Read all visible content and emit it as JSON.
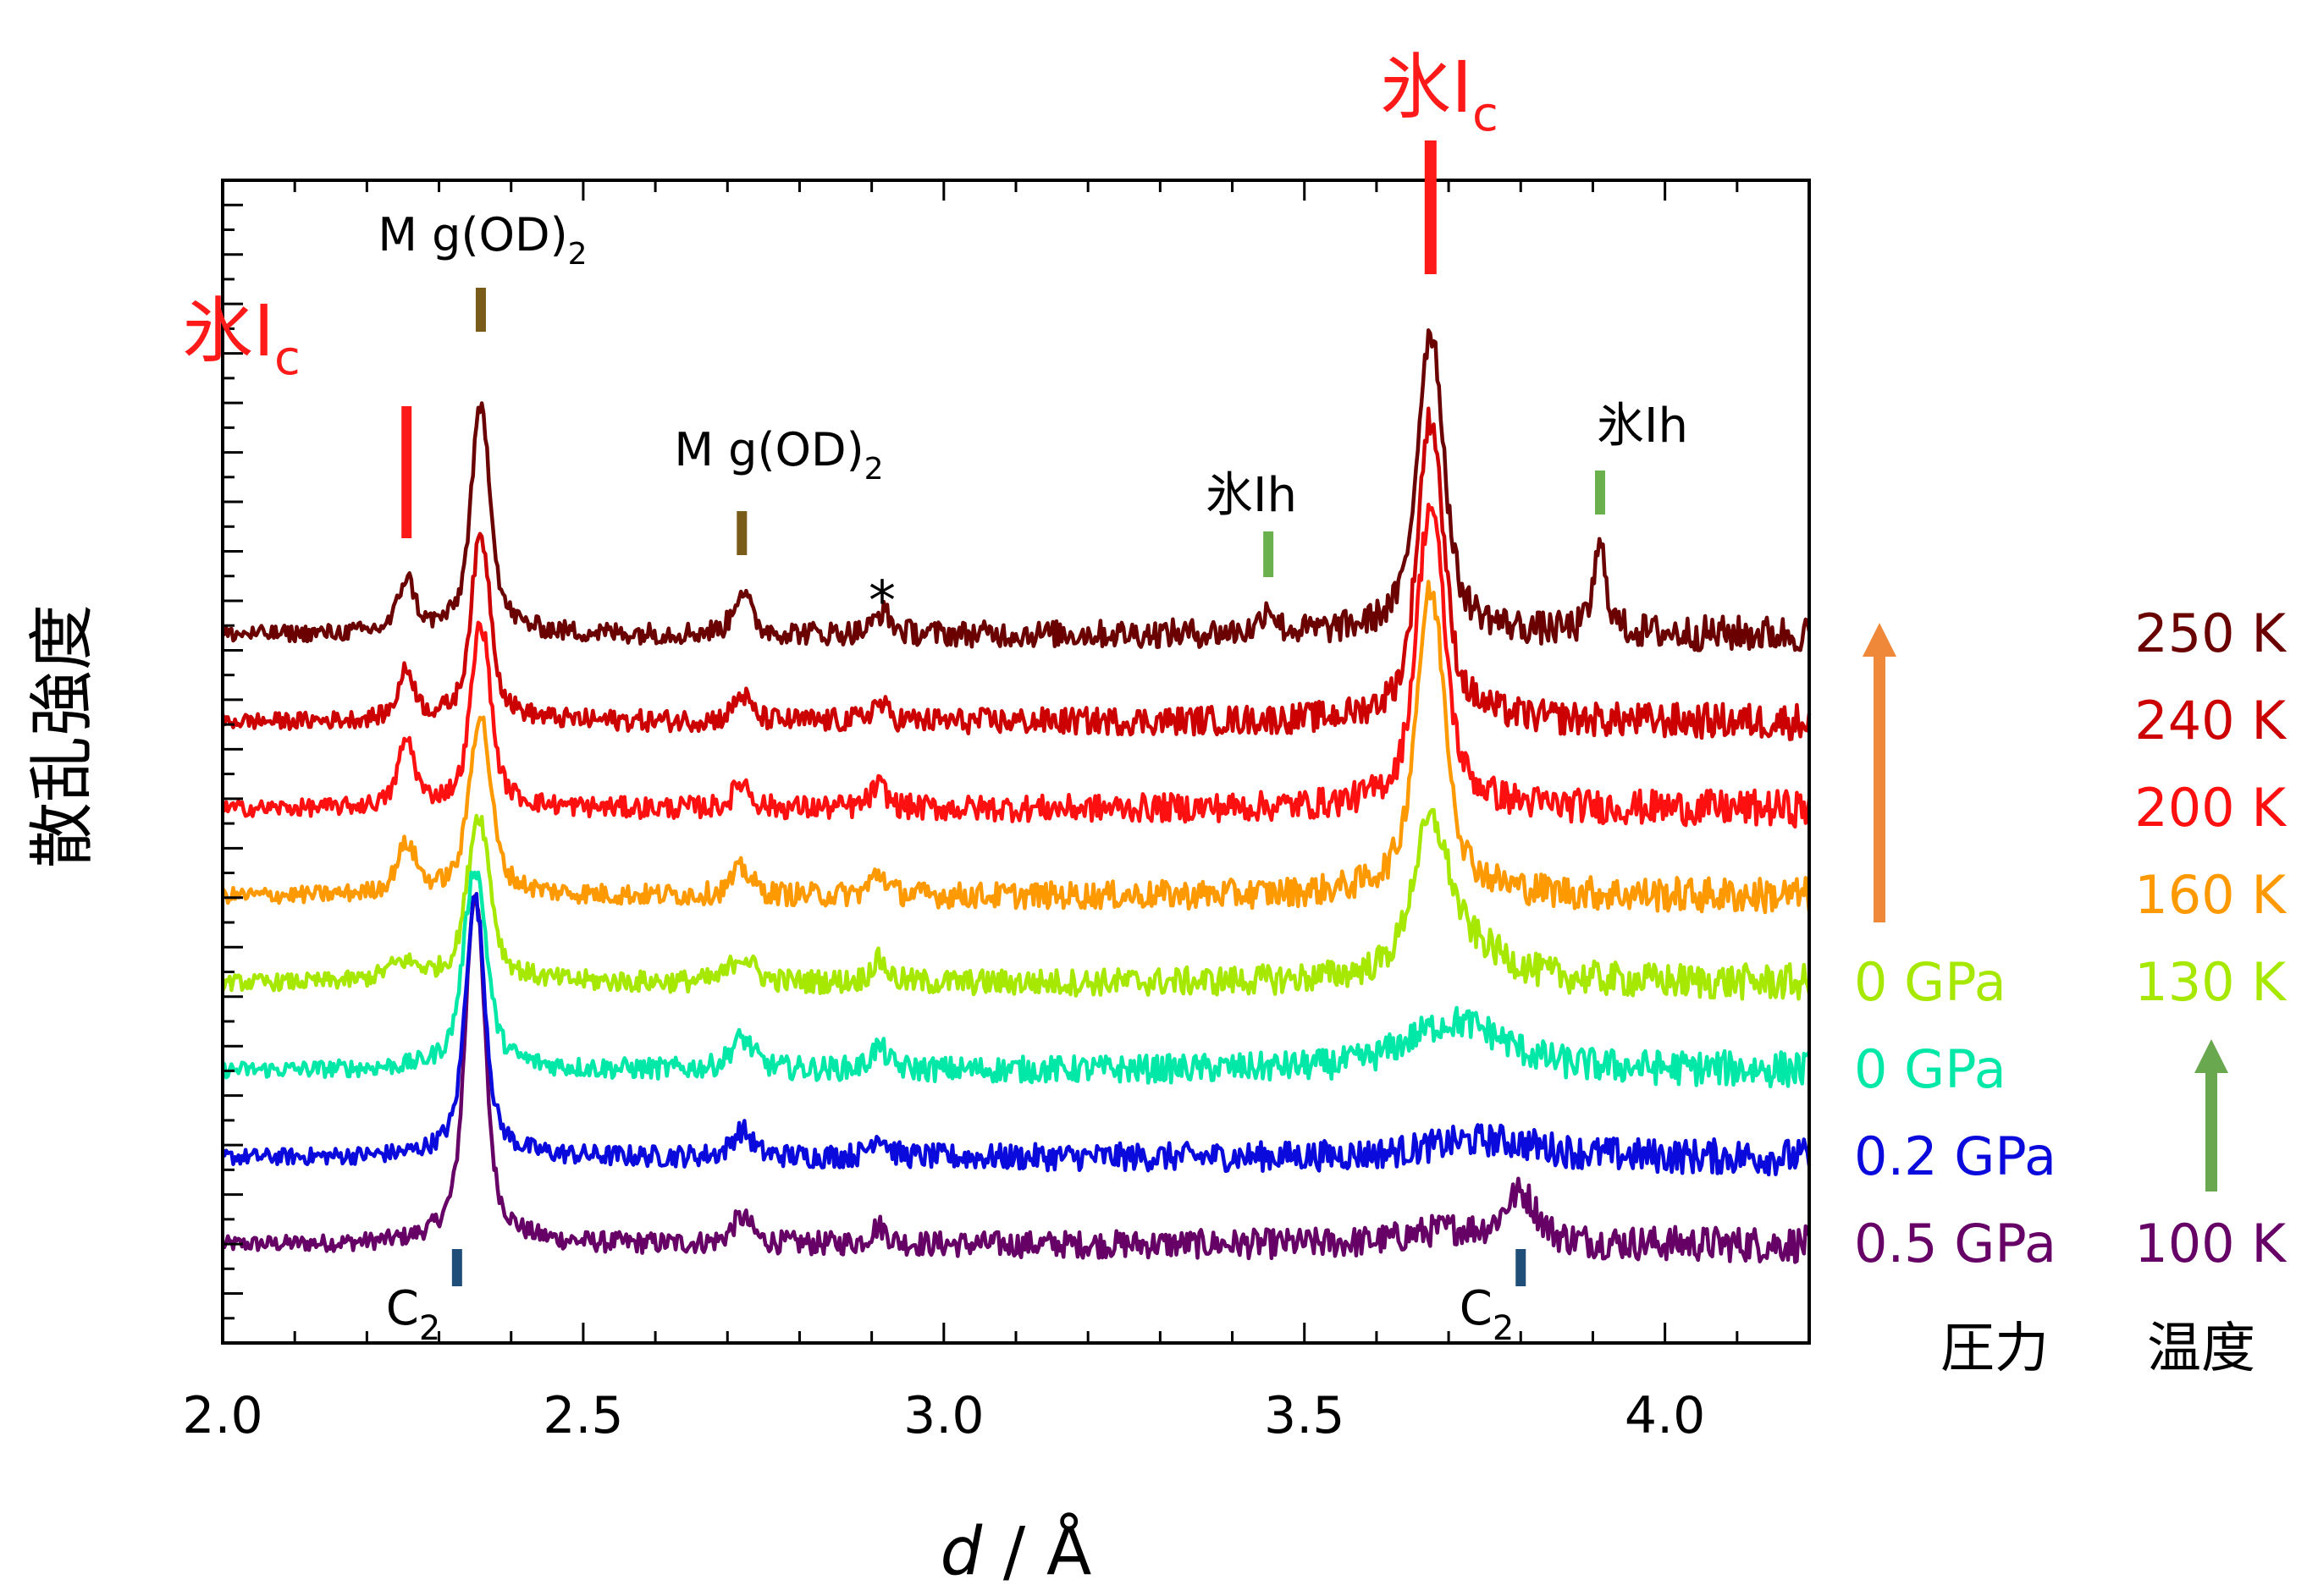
{
  "chart_data": {
    "type": "line",
    "xlabel_italic": "d",
    "xlabel_rest": " / Å",
    "ylabel": "散乱強度",
    "xlim": [
      2.0,
      4.2
    ],
    "x_ticks": [
      2.0,
      2.5,
      3.0,
      3.5,
      4.0
    ],
    "x_tick_labels": [
      "2.0",
      "2.5",
      "3.0",
      "3.5",
      "4.0"
    ],
    "grid": false,
    "series": [
      {
        "key": "s100",
        "temperature": "100 K",
        "pressure": "0.5 GPa",
        "color": "#660066",
        "offset": 0.0,
        "base": 0.0
      },
      {
        "key": "s100b",
        "temperature": "",
        "pressure": "0.2 GPa",
        "color": "#0a0adc",
        "offset": 1.0,
        "base": 0.0
      },
      {
        "key": "s100c",
        "temperature": "",
        "pressure": "0 GPa",
        "color": "#00e8a8",
        "offset": 2.0,
        "base": 0.0
      },
      {
        "key": "s130",
        "temperature": "130 K",
        "pressure": "0 GPa",
        "color": "#a6e800",
        "offset": 3.0,
        "base": 0.0
      },
      {
        "key": "s160",
        "temperature": "160 K",
        "pressure": "",
        "color": "#ff9900",
        "offset": 4.0,
        "base": 0.0
      },
      {
        "key": "s200",
        "temperature": "200 K",
        "pressure": "",
        "color": "#ff1010",
        "offset": 5.0,
        "base": 0.0
      },
      {
        "key": "s240",
        "temperature": "240 K",
        "pressure": "",
        "color": "#cc0000",
        "offset": 6.0,
        "base": 0.0
      },
      {
        "key": "s250",
        "temperature": "250 K",
        "pressure": "",
        "color": "#6b0000",
        "offset": 7.0,
        "base": 0.0
      }
    ],
    "peaks": {
      "s100": [
        [
          2.35,
          4.0,
          0.012
        ],
        [
          2.72,
          0.3,
          0.012
        ],
        [
          2.91,
          0.2,
          0.01
        ],
        [
          3.8,
          0.55,
          0.02
        ],
        [
          3.7,
          0.15,
          0.05
        ]
      ],
      "s100b": [
        [
          2.35,
          2.95,
          0.012
        ],
        [
          2.72,
          0.3,
          0.012
        ],
        [
          2.91,
          0.25,
          0.01
        ],
        [
          3.75,
          0.2,
          0.07
        ]
      ],
      "s100c": [
        [
          2.35,
          2.3,
          0.014
        ],
        [
          2.72,
          0.35,
          0.014
        ],
        [
          2.91,
          0.25,
          0.01
        ],
        [
          3.71,
          0.55,
          0.06
        ]
      ],
      "s130": [
        [
          2.25,
          0.2,
          0.02
        ],
        [
          2.355,
          1.9,
          0.014
        ],
        [
          2.72,
          0.3,
          0.014
        ],
        [
          2.91,
          0.25,
          0.01
        ],
        [
          3.675,
          1.6,
          0.022
        ],
        [
          3.72,
          0.35,
          0.05
        ]
      ],
      "s160": [
        [
          2.255,
          0.55,
          0.012
        ],
        [
          2.357,
          2.05,
          0.013
        ],
        [
          2.72,
          0.3,
          0.012
        ],
        [
          2.91,
          0.25,
          0.01
        ],
        [
          3.675,
          3.45,
          0.018
        ]
      ],
      "s200": [
        [
          2.255,
          0.75,
          0.01
        ],
        [
          2.358,
          2.1,
          0.012
        ],
        [
          2.72,
          0.3,
          0.01
        ],
        [
          2.91,
          0.25,
          0.01
        ],
        [
          3.675,
          3.45,
          0.017
        ]
      ],
      "s240": [
        [
          2.255,
          0.55,
          0.01
        ],
        [
          2.358,
          2.1,
          0.012
        ],
        [
          2.72,
          0.3,
          0.01
        ],
        [
          2.91,
          0.2,
          0.01
        ],
        [
          3.675,
          3.45,
          0.016
        ]
      ],
      "s250": [
        [
          2.255,
          0.6,
          0.01
        ],
        [
          2.358,
          2.55,
          0.012
        ],
        [
          2.72,
          0.5,
          0.01
        ],
        [
          2.915,
          0.25,
          0.01
        ],
        [
          3.45,
          0.3,
          0.008
        ],
        [
          3.675,
          3.45,
          0.016
        ],
        [
          3.91,
          0.95,
          0.008
        ]
      ]
    },
    "markers": [
      {
        "label": "氷Ic",
        "x": 2.255,
        "color": "#ff1a1a"
      },
      {
        "label": "Mg(OD)2",
        "x": 2.358,
        "color": "#7a5c1a"
      },
      {
        "label": "Mg(OD)2",
        "x": 2.72,
        "color": "#7a5c1a"
      },
      {
        "label": "*",
        "x": 2.915,
        "color": "#000000"
      },
      {
        "label": "氷Ih",
        "x": 3.45,
        "color": "#6ab04c"
      },
      {
        "label": "氷Ic",
        "x": 3.675,
        "color": "#ff1a1a"
      },
      {
        "label": "氷Ih",
        "x": 3.91,
        "color": "#6ab04c"
      },
      {
        "label": "C2",
        "x": 2.325,
        "color": "#1f4e79"
      },
      {
        "label": "C2",
        "x": 3.8,
        "color": "#1f4e79"
      }
    ],
    "legend": {
      "pressure_title": "圧力",
      "temperature_title": "温度",
      "pressure_arrow_color": "#f0883a",
      "temperature_arrow_color": "#6aa84f"
    }
  },
  "labels": {
    "ice_ic_left_main": "氷I",
    "ice_ic_left_sub": "c",
    "ice_ic_right_main": "氷I",
    "ice_ic_right_sub": "c",
    "mgod_main_1": "M g(OD)",
    "mgod_sub_1": "2",
    "mgod_main_2": "M g(OD)",
    "mgod_sub_2": "2",
    "star": "*",
    "ice_ih_1": "氷Ih",
    "ice_ih_2": "氷Ih",
    "c2_main_1": "C",
    "c2_sub_1": "2",
    "c2_main_2": "C",
    "c2_sub_2": "2"
  }
}
